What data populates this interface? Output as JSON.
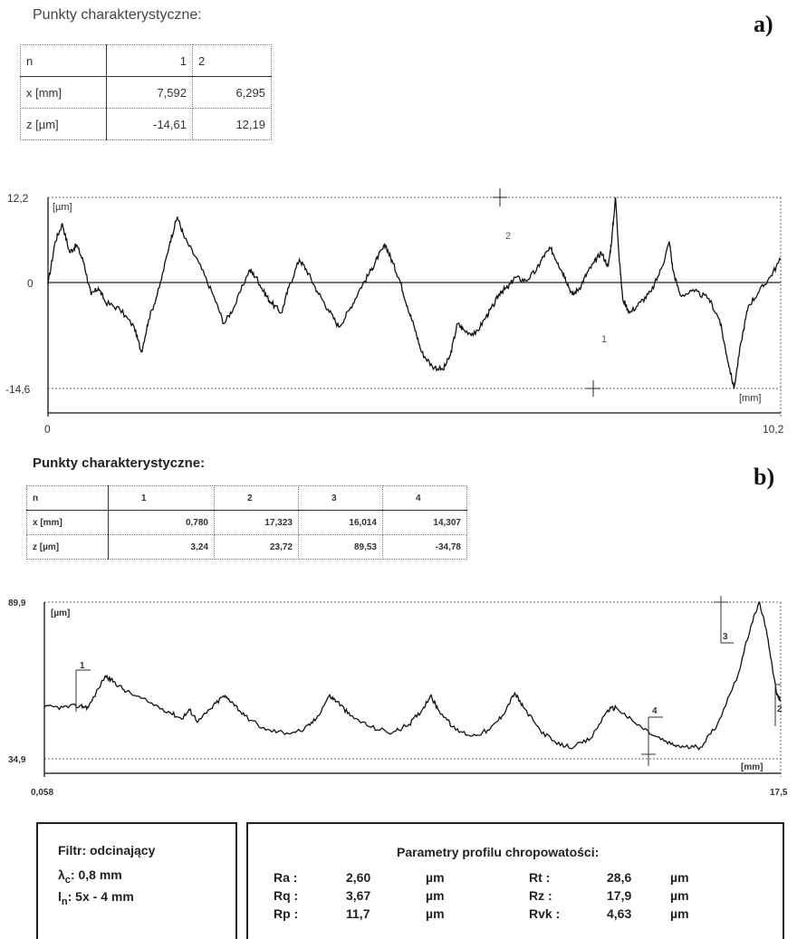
{
  "panel_a": {
    "title": "Punkty charakterystyczne:",
    "letter": "a)",
    "table": {
      "header": [
        "n",
        "1",
        "2"
      ],
      "rows": [
        [
          "x [mm]",
          "7,592",
          "6,295"
        ],
        [
          "z [µm]",
          "-14,61",
          "12,19"
        ]
      ]
    }
  },
  "panel_b": {
    "title": "Punkty charakterystyczne:",
    "letter": "b)",
    "table": {
      "header": [
        "n",
        "1",
        "2",
        "3",
        "4"
      ],
      "rows": [
        [
          "x [mm]",
          "0,780",
          "17,323",
          "16,014",
          "14,307"
        ],
        [
          "z [µm]",
          "3,24",
          "23,72",
          "89,53",
          "-34,78"
        ]
      ]
    }
  },
  "chart_data": [
    {
      "type": "line",
      "title": "",
      "ylabel": "[µm]",
      "xlabel": "[mm]",
      "xlim": [
        0,
        10.2
      ],
      "ylim": [
        -14.6,
        12.2
      ],
      "x_tick_labels": [
        "0",
        "10,2"
      ],
      "y_tick_labels": [
        "12,2",
        "0",
        "-14,6"
      ],
      "grid": false,
      "point_labels": [
        "1",
        "2"
      ],
      "profile": [
        [
          0,
          0
        ],
        [
          0.1,
          6.0
        ],
        [
          0.2,
          8.5
        ],
        [
          0.3,
          4.5
        ],
        [
          0.4,
          5.5
        ],
        [
          0.5,
          3.0
        ],
        [
          0.6,
          -1.5
        ],
        [
          0.7,
          -0.5
        ],
        [
          0.8,
          -2.5
        ],
        [
          1.0,
          -3.5
        ],
        [
          1.2,
          -6.0
        ],
        [
          1.3,
          -9.5
        ],
        [
          1.4,
          -5.0
        ],
        [
          1.55,
          -0.5
        ],
        [
          1.7,
          6.0
        ],
        [
          1.8,
          9.5
        ],
        [
          1.9,
          6.5
        ],
        [
          2.1,
          3.0
        ],
        [
          2.3,
          -1.5
        ],
        [
          2.45,
          -5.5
        ],
        [
          2.6,
          -3.0
        ],
        [
          2.8,
          2.0
        ],
        [
          2.9,
          1.0
        ],
        [
          3.0,
          -1.0
        ],
        [
          3.1,
          -2.5
        ],
        [
          3.25,
          -4.0
        ],
        [
          3.35,
          -0.5
        ],
        [
          3.5,
          3.5
        ],
        [
          3.6,
          2.0
        ],
        [
          3.75,
          -1.0
        ],
        [
          3.9,
          -3.5
        ],
        [
          4.05,
          -6.0
        ],
        [
          4.2,
          -3.5
        ],
        [
          4.35,
          -0.5
        ],
        [
          4.5,
          2.0
        ],
        [
          4.6,
          4.0
        ],
        [
          4.7,
          5.5
        ],
        [
          4.8,
          3.0
        ],
        [
          4.9,
          0.5
        ],
        [
          5.0,
          -3.0
        ],
        [
          5.1,
          -6.0
        ],
        [
          5.2,
          -9.5
        ],
        [
          5.35,
          -11.5
        ],
        [
          5.5,
          -12.0
        ],
        [
          5.6,
          -10.0
        ],
        [
          5.7,
          -5.5
        ],
        [
          5.8,
          -6.5
        ],
        [
          5.95,
          -7.0
        ],
        [
          6.1,
          -4.5
        ],
        [
          6.2,
          -3.0
        ],
        [
          6.3,
          -1.0
        ],
        [
          6.4,
          -0.5
        ],
        [
          6.5,
          1.0
        ],
        [
          6.65,
          0.5
        ],
        [
          6.8,
          2.0
        ],
        [
          6.9,
          4.0
        ],
        [
          7.0,
          5.0
        ],
        [
          7.1,
          3.0
        ],
        [
          7.2,
          1.0
        ],
        [
          7.3,
          -1.5
        ],
        [
          7.4,
          -0.5
        ],
        [
          7.5,
          1.5
        ],
        [
          7.6,
          3.0
        ],
        [
          7.7,
          4.5
        ],
        [
          7.8,
          2.5
        ],
        [
          7.85,
          6.5
        ],
        [
          7.9,
          12.2
        ],
        [
          7.95,
          4.0
        ],
        [
          8.0,
          -2.0
        ],
        [
          8.1,
          -4.0
        ],
        [
          8.25,
          -2.5
        ],
        [
          8.4,
          -1.0
        ],
        [
          8.55,
          2.5
        ],
        [
          8.65,
          6.0
        ],
        [
          8.7,
          2.0
        ],
        [
          8.8,
          -1.5
        ],
        [
          9.0,
          -1.0
        ],
        [
          9.2,
          -2.0
        ],
        [
          9.35,
          -5.0
        ],
        [
          9.45,
          -10.0
        ],
        [
          9.55,
          -14.6
        ],
        [
          9.65,
          -8.0
        ],
        [
          9.75,
          -3.0
        ],
        [
          9.9,
          -1.0
        ],
        [
          10.05,
          1.0
        ],
        [
          10.2,
          3.5
        ]
      ]
    },
    {
      "type": "line",
      "title": "",
      "ylabel": "[µm]",
      "xlabel": "[mm]",
      "xlim": [
        0.058,
        17.5
      ],
      "ylim": [
        34.9,
        89.9
      ],
      "x_tick_labels": [
        "0,058",
        "17,5"
      ],
      "y_tick_labels": [
        "89,9",
        "34,9"
      ],
      "grid": false,
      "point_labels": [
        "1",
        "2",
        "3",
        "4"
      ],
      "profile": [
        [
          0.058,
          53.0
        ],
        [
          0.5,
          53.0
        ],
        [
          0.9,
          53.5
        ],
        [
          1.1,
          53.0
        ],
        [
          1.5,
          64.0
        ],
        [
          1.7,
          62.0
        ],
        [
          2.0,
          58.5
        ],
        [
          2.5,
          55.0
        ],
        [
          3.0,
          51.5
        ],
        [
          3.3,
          49.0
        ],
        [
          3.5,
          52.0
        ],
        [
          3.7,
          48.0
        ],
        [
          4.0,
          52.5
        ],
        [
          4.3,
          57.0
        ],
        [
          4.5,
          55.0
        ],
        [
          4.8,
          50.0
        ],
        [
          5.3,
          45.0
        ],
        [
          5.8,
          44.0
        ],
        [
          6.2,
          45.0
        ],
        [
          6.5,
          49.0
        ],
        [
          6.8,
          57.0
        ],
        [
          7.0,
          55.0
        ],
        [
          7.3,
          50.0
        ],
        [
          7.8,
          46.0
        ],
        [
          8.3,
          44.0
        ],
        [
          8.7,
          47.0
        ],
        [
          9.0,
          52.0
        ],
        [
          9.2,
          57.0
        ],
        [
          9.4,
          52.0
        ],
        [
          9.8,
          45.0
        ],
        [
          10.2,
          43.0
        ],
        [
          10.6,
          45.0
        ],
        [
          10.9,
          50.0
        ],
        [
          11.2,
          58.0
        ],
        [
          11.4,
          53.0
        ],
        [
          11.8,
          45.0
        ],
        [
          12.2,
          40.0
        ],
        [
          12.6,
          39.0
        ],
        [
          13.0,
          42.0
        ],
        [
          13.4,
          52.0
        ],
        [
          13.6,
          53.0
        ],
        [
          14.0,
          48.0
        ],
        [
          14.5,
          43.0
        ],
        [
          14.9,
          40.0
        ],
        [
          15.2,
          39.0
        ],
        [
          15.6,
          39.0
        ],
        [
          16.0,
          47.0
        ],
        [
          16.5,
          65.0
        ],
        [
          16.8,
          82.0
        ],
        [
          17.0,
          89.9
        ],
        [
          17.2,
          77.0
        ],
        [
          17.4,
          58.0
        ],
        [
          17.5,
          55.0
        ]
      ]
    }
  ],
  "filter_box": {
    "title": "Filtr: odcinający",
    "lc_symbol": "λ",
    "lc_sub": "c",
    "lc_value": ": 0,8 mm",
    "ln_symbol": "l",
    "ln_sub": "n",
    "ln_value": ": 5x - 4 mm"
  },
  "params_box": {
    "title": "Parametry profilu chropowatości:",
    "rows": [
      {
        "n1": "Ra :",
        "v1": "2,60",
        "u1": "µm",
        "n2": "Rt :",
        "v2": "28,6",
        "u2": "µm"
      },
      {
        "n1": "Rq :",
        "v1": "3,67",
        "u1": "µm",
        "n2": "Rz :",
        "v2": "17,9",
        "u2": "µm"
      },
      {
        "n1": "Rp :",
        "v1": "11,7",
        "u1": "µm",
        "n2": "Rvk :",
        "v2": "4,63",
        "u2": "µm"
      }
    ]
  }
}
